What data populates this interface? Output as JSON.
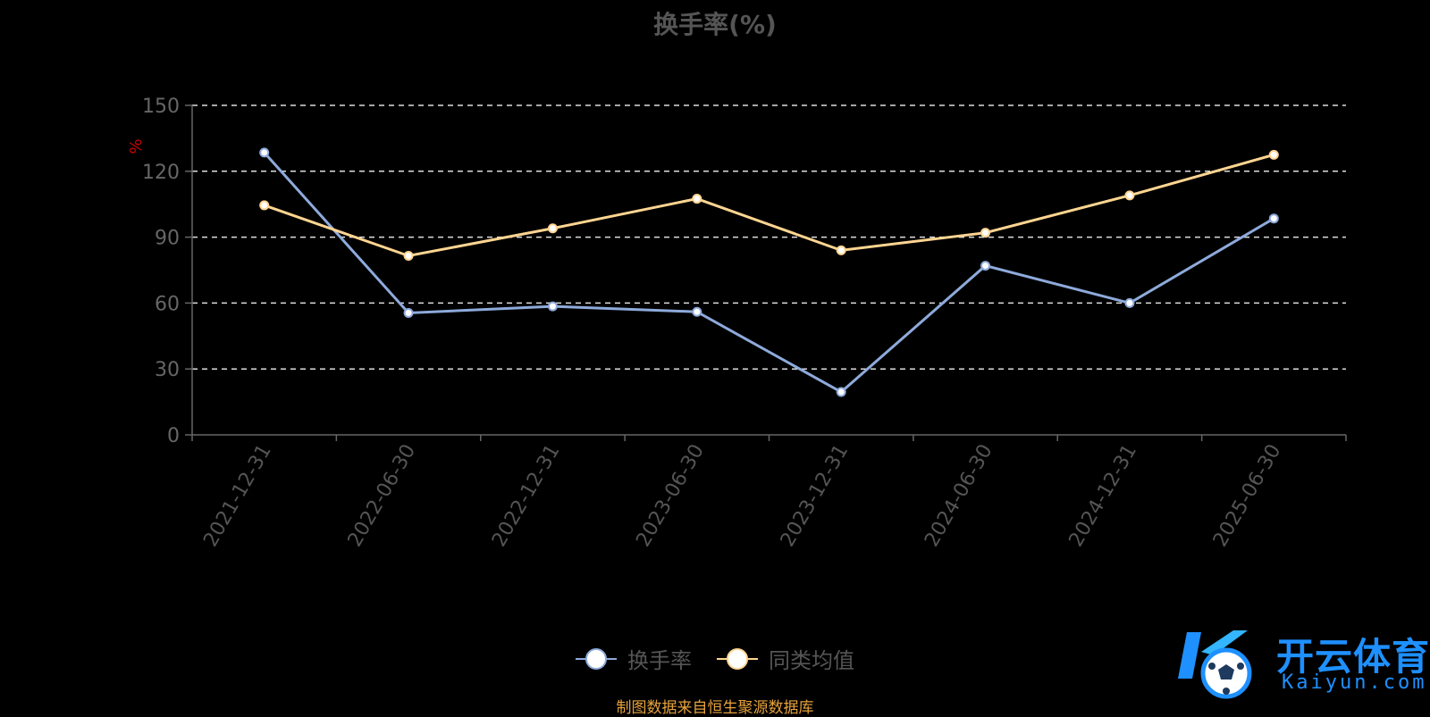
{
  "title": "换手率(%)",
  "unit_label": "%",
  "legend": [
    {
      "name": "换手率",
      "color": "#8eaadb"
    },
    {
      "name": "同类均值",
      "color": "#ffd591"
    }
  ],
  "source": "制图数据来自恒生聚源数据库",
  "logo": {
    "cn": "开云体育",
    "en": "Kaiyun.com"
  },
  "chart_data": {
    "type": "line",
    "title": "换手率(%)",
    "ylabel": "%",
    "ylim": [
      0,
      150
    ],
    "yticks": [
      0,
      30,
      60,
      90,
      120,
      150
    ],
    "grid": true,
    "legend_position": "bottom",
    "categories": [
      "2021-12-31",
      "2022-06-30",
      "2022-12-31",
      "2023-06-30",
      "2023-12-31",
      "2024-06-30",
      "2024-12-31",
      "2025-06-30"
    ],
    "series": [
      {
        "name": "换手率",
        "color": "#8eaadb",
        "values": [
          128.5,
          55.5,
          58.5,
          56,
          19.5,
          77,
          60,
          98.5
        ]
      },
      {
        "name": "同类均值",
        "color": "#ffd591",
        "values": [
          104.5,
          81.5,
          94,
          107.5,
          84,
          92,
          109,
          127.5
        ]
      }
    ]
  }
}
